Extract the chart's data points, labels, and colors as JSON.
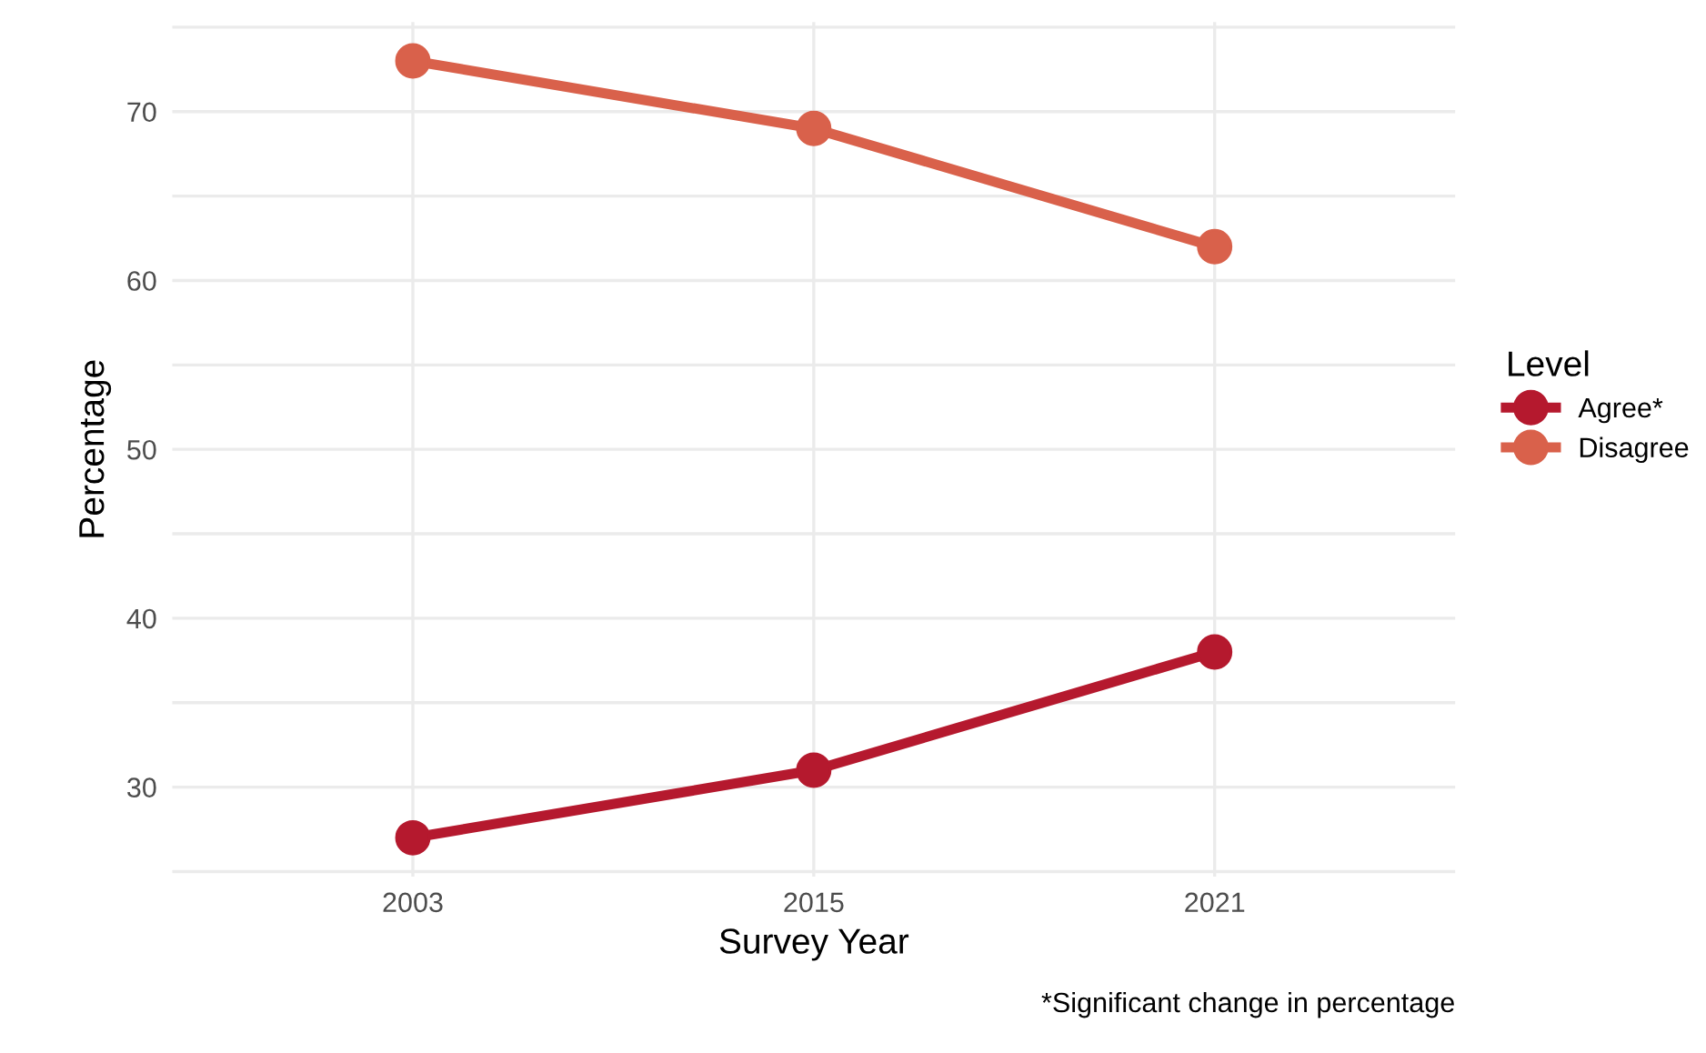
{
  "chart_data": {
    "type": "line",
    "xlabel": "Survey Year",
    "ylabel": "Percentage",
    "legend_title": "Level",
    "categories": [
      "2003",
      "2015",
      "2021"
    ],
    "series": [
      {
        "name": "Agree*",
        "color": "#b5192e",
        "values": [
          27,
          31,
          38
        ]
      },
      {
        "name": "Disagree",
        "color": "#d9614b",
        "values": [
          73,
          69,
          62
        ]
      }
    ],
    "ylim": [
      24.7,
      75.3
    ],
    "yticks": [
      {
        "value": 25,
        "label": null
      },
      30,
      {
        "value": 35,
        "label": null
      },
      40,
      {
        "value": 45,
        "label": null
      },
      50,
      {
        "value": 55,
        "label": null
      },
      60,
      {
        "value": 65,
        "label": null
      },
      70,
      {
        "value": 75,
        "label": null
      }
    ],
    "grid": true,
    "legend": "right",
    "marker": "circle",
    "line_style": "solid",
    "annotations": [
      "*Significant change in percentage"
    ]
  }
}
